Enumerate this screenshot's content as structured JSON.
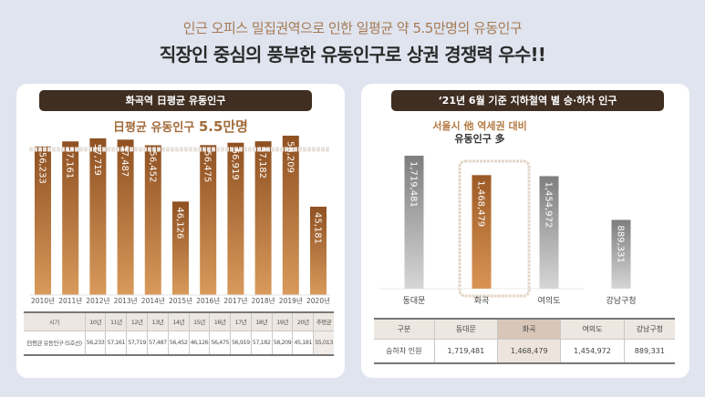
{
  "header": {
    "subheadline": "인근 오피스 밀집권역으로 인한 일평균 약 5.5만명의 유동인구",
    "headline": "직장인 중심의 풍부한 유동인구로 상권 경쟁력 우수!!"
  },
  "left_panel": {
    "title": "화곡역 日평균 유동인구",
    "subtitle_prefix": "日평균 유동인구 ",
    "subtitle_value": "5.5만명",
    "table": {
      "row_header": "시기",
      "columns": [
        "10년",
        "11년",
        "12년",
        "13년",
        "14년",
        "15년",
        "16년",
        "17년",
        "18년",
        "19년",
        "20년",
        "추평균"
      ],
      "row_label": "日평균 유동인구 (5호선)",
      "values": [
        "56,233",
        "57,161",
        "57,719",
        "57,487",
        "56,452",
        "46,126",
        "56,475",
        "56,919",
        "57,182",
        "58,209",
        "45,181",
        "55,013"
      ]
    }
  },
  "right_panel": {
    "title": "‘21년 6월 기준 지하철역 별 승·하차 인구",
    "callout_line1": "서울시 他 역세권 대비",
    "callout_line2": "유동인구 多",
    "table": {
      "header_label": "구분",
      "columns": [
        "동대문",
        "화곡",
        "여의도",
        "강남구청"
      ],
      "row_label": "승하차 인원",
      "values": [
        "1,719,481",
        "1,468,479",
        "1,454,972",
        "889,331"
      ]
    }
  },
  "colors": {
    "title_bar": "#3f2e21",
    "bar_brown": "#a8652e",
    "bar_highlight": "#b87333",
    "bar_gray": "#8d8d8d",
    "accent_text": "#a26b3a",
    "background": "#dfe4ef"
  },
  "chart_data": [
    {
      "type": "bar",
      "title": "화곡역 日평균 유동인구",
      "categories": [
        "2010년",
        "2011년",
        "2012년",
        "2013년",
        "2014년",
        "2015년",
        "2016년",
        "2017년",
        "2018년",
        "2019년",
        "2020년"
      ],
      "values": [
        56233,
        57161,
        57719,
        57487,
        56452,
        46126,
        56475,
        56919,
        57182,
        58209,
        45181
      ],
      "data_labels": [
        "56,233",
        "57,161",
        "57,719",
        "57,487",
        "56,452",
        "46,126",
        "56,475",
        "56,919",
        "57,182",
        "58,209",
        "45,181"
      ],
      "reference_line": {
        "label": "日평균 유동인구 5.5만명",
        "value": 55013
      },
      "xlabel": "",
      "ylabel": "",
      "ylim": [
        0,
        60000
      ],
      "grid": false,
      "legend": "none"
    },
    {
      "type": "bar",
      "title": "‘21년 6월 기준 지하철역 별 승·하차 인구",
      "categories": [
        "동대문",
        "화곡",
        "여의도",
        "강남구청"
      ],
      "values": [
        1719481,
        1468479,
        1454972,
        889331
      ],
      "data_labels": [
        "1,719,481",
        "1,468,479",
        "1,454,972",
        "889,331"
      ],
      "highlight": "화곡",
      "annotation": "서울시 他 역세권 대비 유동인구 多",
      "xlabel": "",
      "ylabel": "",
      "ylim": [
        0,
        1800000
      ],
      "grid": false,
      "legend": "none"
    }
  ]
}
